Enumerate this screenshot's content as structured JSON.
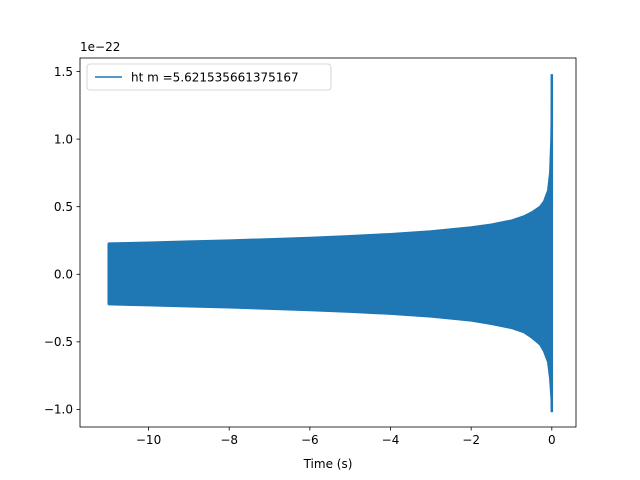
{
  "chart_data": {
    "type": "line",
    "title": "",
    "xlabel": "Time (s)",
    "ylabel": "",
    "y_offset_label": "1e−22",
    "xlim": [
      -11.7,
      0.6
    ],
    "ylim": [
      -1.13,
      1.6
    ],
    "x_ticks": [
      -10,
      -8,
      -6,
      -4,
      -2,
      0
    ],
    "x_tick_labels": [
      "−10",
      "−8",
      "−6",
      "−4",
      "−2",
      "0"
    ],
    "y_ticks": [
      -1.0,
      -0.5,
      0.0,
      0.5,
      1.0,
      1.5
    ],
    "y_tick_labels": [
      "−1.0",
      "−0.5",
      "0.0",
      "0.5",
      "1.0",
      "1.5"
    ],
    "grid": false,
    "legend_position": "top-left",
    "series": [
      {
        "name": "ht m =5.621535661375167",
        "color": "#1f77b4",
        "upper_envelope": {
          "x": [
            -11.0,
            -10.0,
            -9.0,
            -8.0,
            -7.0,
            -6.0,
            -5.0,
            -4.0,
            -3.0,
            -2.0,
            -1.5,
            -1.0,
            -0.7,
            -0.5,
            -0.3,
            -0.2,
            -0.1,
            -0.05,
            -0.02,
            0.0
          ],
          "y": [
            0.23,
            0.237,
            0.245,
            0.253,
            0.262,
            0.272,
            0.285,
            0.3,
            0.32,
            0.35,
            0.37,
            0.4,
            0.43,
            0.46,
            0.5,
            0.54,
            0.62,
            0.75,
            1.0,
            1.48
          ]
        },
        "lower_envelope": {
          "x": [
            -11.0,
            -10.0,
            -9.0,
            -8.0,
            -7.0,
            -6.0,
            -5.0,
            -4.0,
            -3.0,
            -2.0,
            -1.5,
            -1.0,
            -0.7,
            -0.5,
            -0.3,
            -0.2,
            -0.1,
            -0.05,
            -0.02,
            0.0
          ],
          "y": [
            -0.225,
            -0.232,
            -0.24,
            -0.248,
            -0.258,
            -0.268,
            -0.28,
            -0.295,
            -0.315,
            -0.345,
            -0.37,
            -0.4,
            -0.43,
            -0.47,
            -0.52,
            -0.57,
            -0.65,
            -0.77,
            -0.9,
            -1.02
          ]
        }
      }
    ]
  }
}
